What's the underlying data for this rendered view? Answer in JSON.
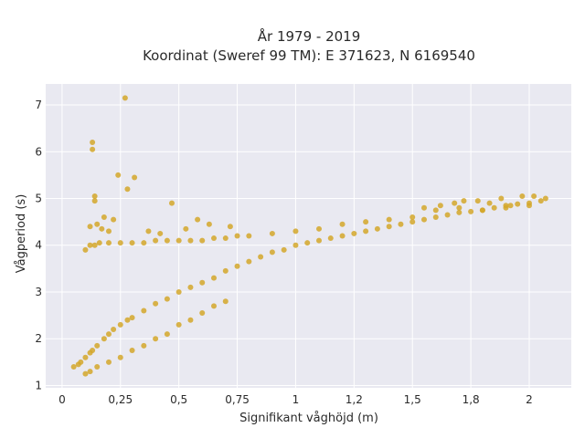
{
  "chart_data": {
    "type": "scatter",
    "title_line1": "År 1979 - 2019",
    "title_line2": "Koordinat (Sweref 99 TM): E 371623, N 6169540",
    "xlabel": "Signifikant våghöjd (m)",
    "ylabel": "Vågperiod (s)",
    "xlim": [
      -0.07,
      2.18
    ],
    "ylim": [
      0.95,
      7.45
    ],
    "x_ticks": [
      0,
      0.25,
      0.5,
      0.75,
      1,
      1.25,
      1.5,
      1.75,
      2
    ],
    "x_tick_labels": [
      "0",
      "0,25",
      "0,5",
      "0,75",
      "1",
      "1,2",
      "1,5",
      "1,8",
      "2"
    ],
    "y_ticks": [
      1,
      2,
      3,
      4,
      5,
      6,
      7
    ],
    "y_tick_labels": [
      "1",
      "2",
      "3",
      "4",
      "5",
      "6",
      "7"
    ],
    "grid": true,
    "colors": {
      "background": "#e9e9f1",
      "grid": "#ffffff",
      "point": "#d4a72a"
    },
    "series": [
      {
        "x": [
          0.05,
          0.07,
          0.08,
          0.1,
          0.12,
          0.13,
          0.15,
          0.18,
          0.2,
          0.22,
          0.25,
          0.28,
          0.3,
          0.35,
          0.4,
          0.45,
          0.5,
          0.55,
          0.6,
          0.65,
          0.7,
          0.75,
          0.8,
          0.85,
          0.9,
          0.95,
          1.0,
          1.05,
          1.1,
          1.15,
          1.2,
          1.25,
          1.3,
          1.35,
          1.4,
          1.45,
          1.5,
          1.55,
          1.6,
          1.65,
          1.7,
          1.75,
          1.8,
          1.85,
          1.9,
          1.95,
          2.0,
          2.05,
          0.1,
          0.12,
          0.14,
          0.16,
          0.2,
          0.25,
          0.3,
          0.35,
          0.4,
          0.45,
          0.5,
          0.55,
          0.6,
          0.65,
          0.7,
          0.75,
          0.8,
          0.9,
          1.0,
          1.1,
          1.2,
          1.3,
          1.4,
          1.5,
          0.1,
          0.12,
          0.15,
          0.2,
          0.25,
          0.3,
          0.35,
          0.4,
          0.45,
          0.5,
          0.55,
          0.6,
          0.65,
          0.7,
          0.13,
          0.13,
          0.14,
          0.14,
          0.27,
          0.24,
          0.31,
          0.18,
          0.22,
          0.28,
          0.12,
          0.2,
          0.15,
          0.17,
          0.47,
          0.58,
          0.63,
          0.72,
          0.37,
          0.42,
          0.53,
          1.55,
          1.62,
          1.68,
          1.72,
          1.78,
          1.83,
          1.88,
          1.92,
          1.97,
          2.02,
          2.07,
          1.6,
          1.7,
          1.8,
          1.9,
          2.0
        ],
        "y": [
          1.4,
          1.45,
          1.5,
          1.6,
          1.7,
          1.75,
          1.85,
          2.0,
          2.1,
          2.2,
          2.3,
          2.4,
          2.45,
          2.6,
          2.75,
          2.85,
          3.0,
          3.1,
          3.2,
          3.3,
          3.45,
          3.55,
          3.65,
          3.75,
          3.85,
          3.9,
          4.0,
          4.05,
          4.1,
          4.15,
          4.2,
          4.25,
          4.3,
          4.35,
          4.4,
          4.45,
          4.5,
          4.55,
          4.6,
          4.65,
          4.7,
          4.72,
          4.75,
          4.8,
          4.85,
          4.88,
          4.9,
          4.95,
          3.9,
          4.0,
          4.0,
          4.05,
          4.05,
          4.05,
          4.05,
          4.05,
          4.1,
          4.1,
          4.1,
          4.1,
          4.1,
          4.15,
          4.15,
          4.2,
          4.2,
          4.25,
          4.3,
          4.35,
          4.45,
          4.5,
          4.55,
          4.6,
          1.25,
          1.3,
          1.4,
          1.5,
          1.6,
          1.75,
          1.85,
          2.0,
          2.1,
          2.3,
          2.4,
          2.55,
          2.7,
          2.8,
          6.2,
          6.05,
          5.05,
          4.95,
          7.15,
          5.5,
          5.45,
          4.6,
          4.55,
          5.2,
          4.4,
          4.3,
          4.45,
          4.35,
          4.9,
          4.55,
          4.45,
          4.4,
          4.3,
          4.25,
          4.35,
          4.8,
          4.85,
          4.9,
          4.95,
          4.95,
          4.9,
          5.0,
          4.85,
          5.05,
          5.05,
          5.0,
          4.75,
          4.8,
          4.75,
          4.8,
          4.85
        ]
      }
    ]
  }
}
